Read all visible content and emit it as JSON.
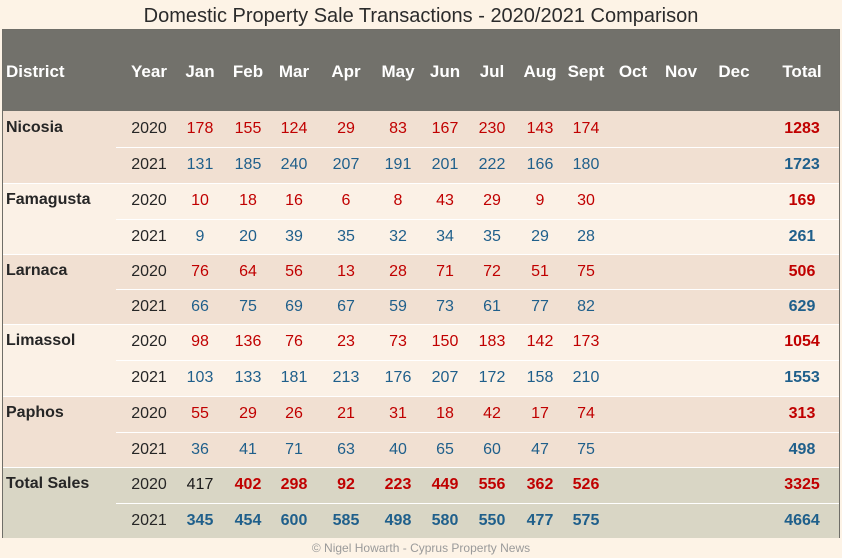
{
  "chart_data": {
    "type": "table",
    "title": "Domestic Property Sale Transactions - 2020/2021 Comparison",
    "columns": [
      "District",
      "Year",
      "Jan",
      "Feb",
      "Mar",
      "Apr",
      "May",
      "Jun",
      "Jul",
      "Aug",
      "Sept",
      "Oct",
      "Nov",
      "Dec",
      "Total"
    ],
    "rows": [
      {
        "district": "Nicosia",
        "year": "2020",
        "values": [
          178,
          155,
          124,
          29,
          83,
          167,
          230,
          143,
          174
        ],
        "total": 1283
      },
      {
        "district": "",
        "year": "2021",
        "values": [
          131,
          185,
          240,
          207,
          191,
          201,
          222,
          166,
          180
        ],
        "total": 1723
      },
      {
        "district": "Famagusta",
        "year": "2020",
        "values": [
          10,
          18,
          16,
          6,
          8,
          43,
          29,
          9,
          30
        ],
        "total": 169
      },
      {
        "district": "",
        "year": "2021",
        "values": [
          9,
          20,
          39,
          35,
          32,
          34,
          35,
          29,
          28
        ],
        "total": 261
      },
      {
        "district": "Larnaca",
        "year": "2020",
        "values": [
          76,
          64,
          56,
          13,
          28,
          71,
          72,
          51,
          75
        ],
        "total": 506
      },
      {
        "district": "",
        "year": "2021",
        "values": [
          66,
          75,
          69,
          67,
          59,
          73,
          61,
          77,
          82
        ],
        "total": 629
      },
      {
        "district": "Limassol",
        "year": "2020",
        "values": [
          98,
          136,
          76,
          23,
          73,
          150,
          183,
          142,
          173
        ],
        "total": 1054
      },
      {
        "district": "",
        "year": "2021",
        "values": [
          103,
          133,
          181,
          213,
          176,
          207,
          172,
          158,
          210
        ],
        "total": 1553
      },
      {
        "district": "Paphos",
        "year": "2020",
        "values": [
          55,
          29,
          26,
          21,
          31,
          18,
          42,
          17,
          74
        ],
        "total": 313
      },
      {
        "district": "",
        "year": "2021",
        "values": [
          36,
          41,
          71,
          63,
          40,
          65,
          60,
          47,
          75
        ],
        "total": 498
      },
      {
        "district": "Total Sales",
        "year": "2020",
        "values": [
          417,
          402,
          298,
          92,
          223,
          449,
          556,
          362,
          526
        ],
        "total": 3325
      },
      {
        "district": "",
        "year": "2021",
        "values": [
          345,
          454,
          600,
          585,
          498,
          580,
          550,
          477,
          575
        ],
        "total": 4664
      }
    ]
  },
  "colors": {
    "header_bg": "#72716b",
    "value_2020": "#c00000",
    "value_2021": "#1f5f8b",
    "band_a": "#f1e0d2",
    "band_b": "#fbf1e6",
    "total_band": "#d9d6c5"
  },
  "footer": "© Nigel Howarth - Cyprus Property News"
}
